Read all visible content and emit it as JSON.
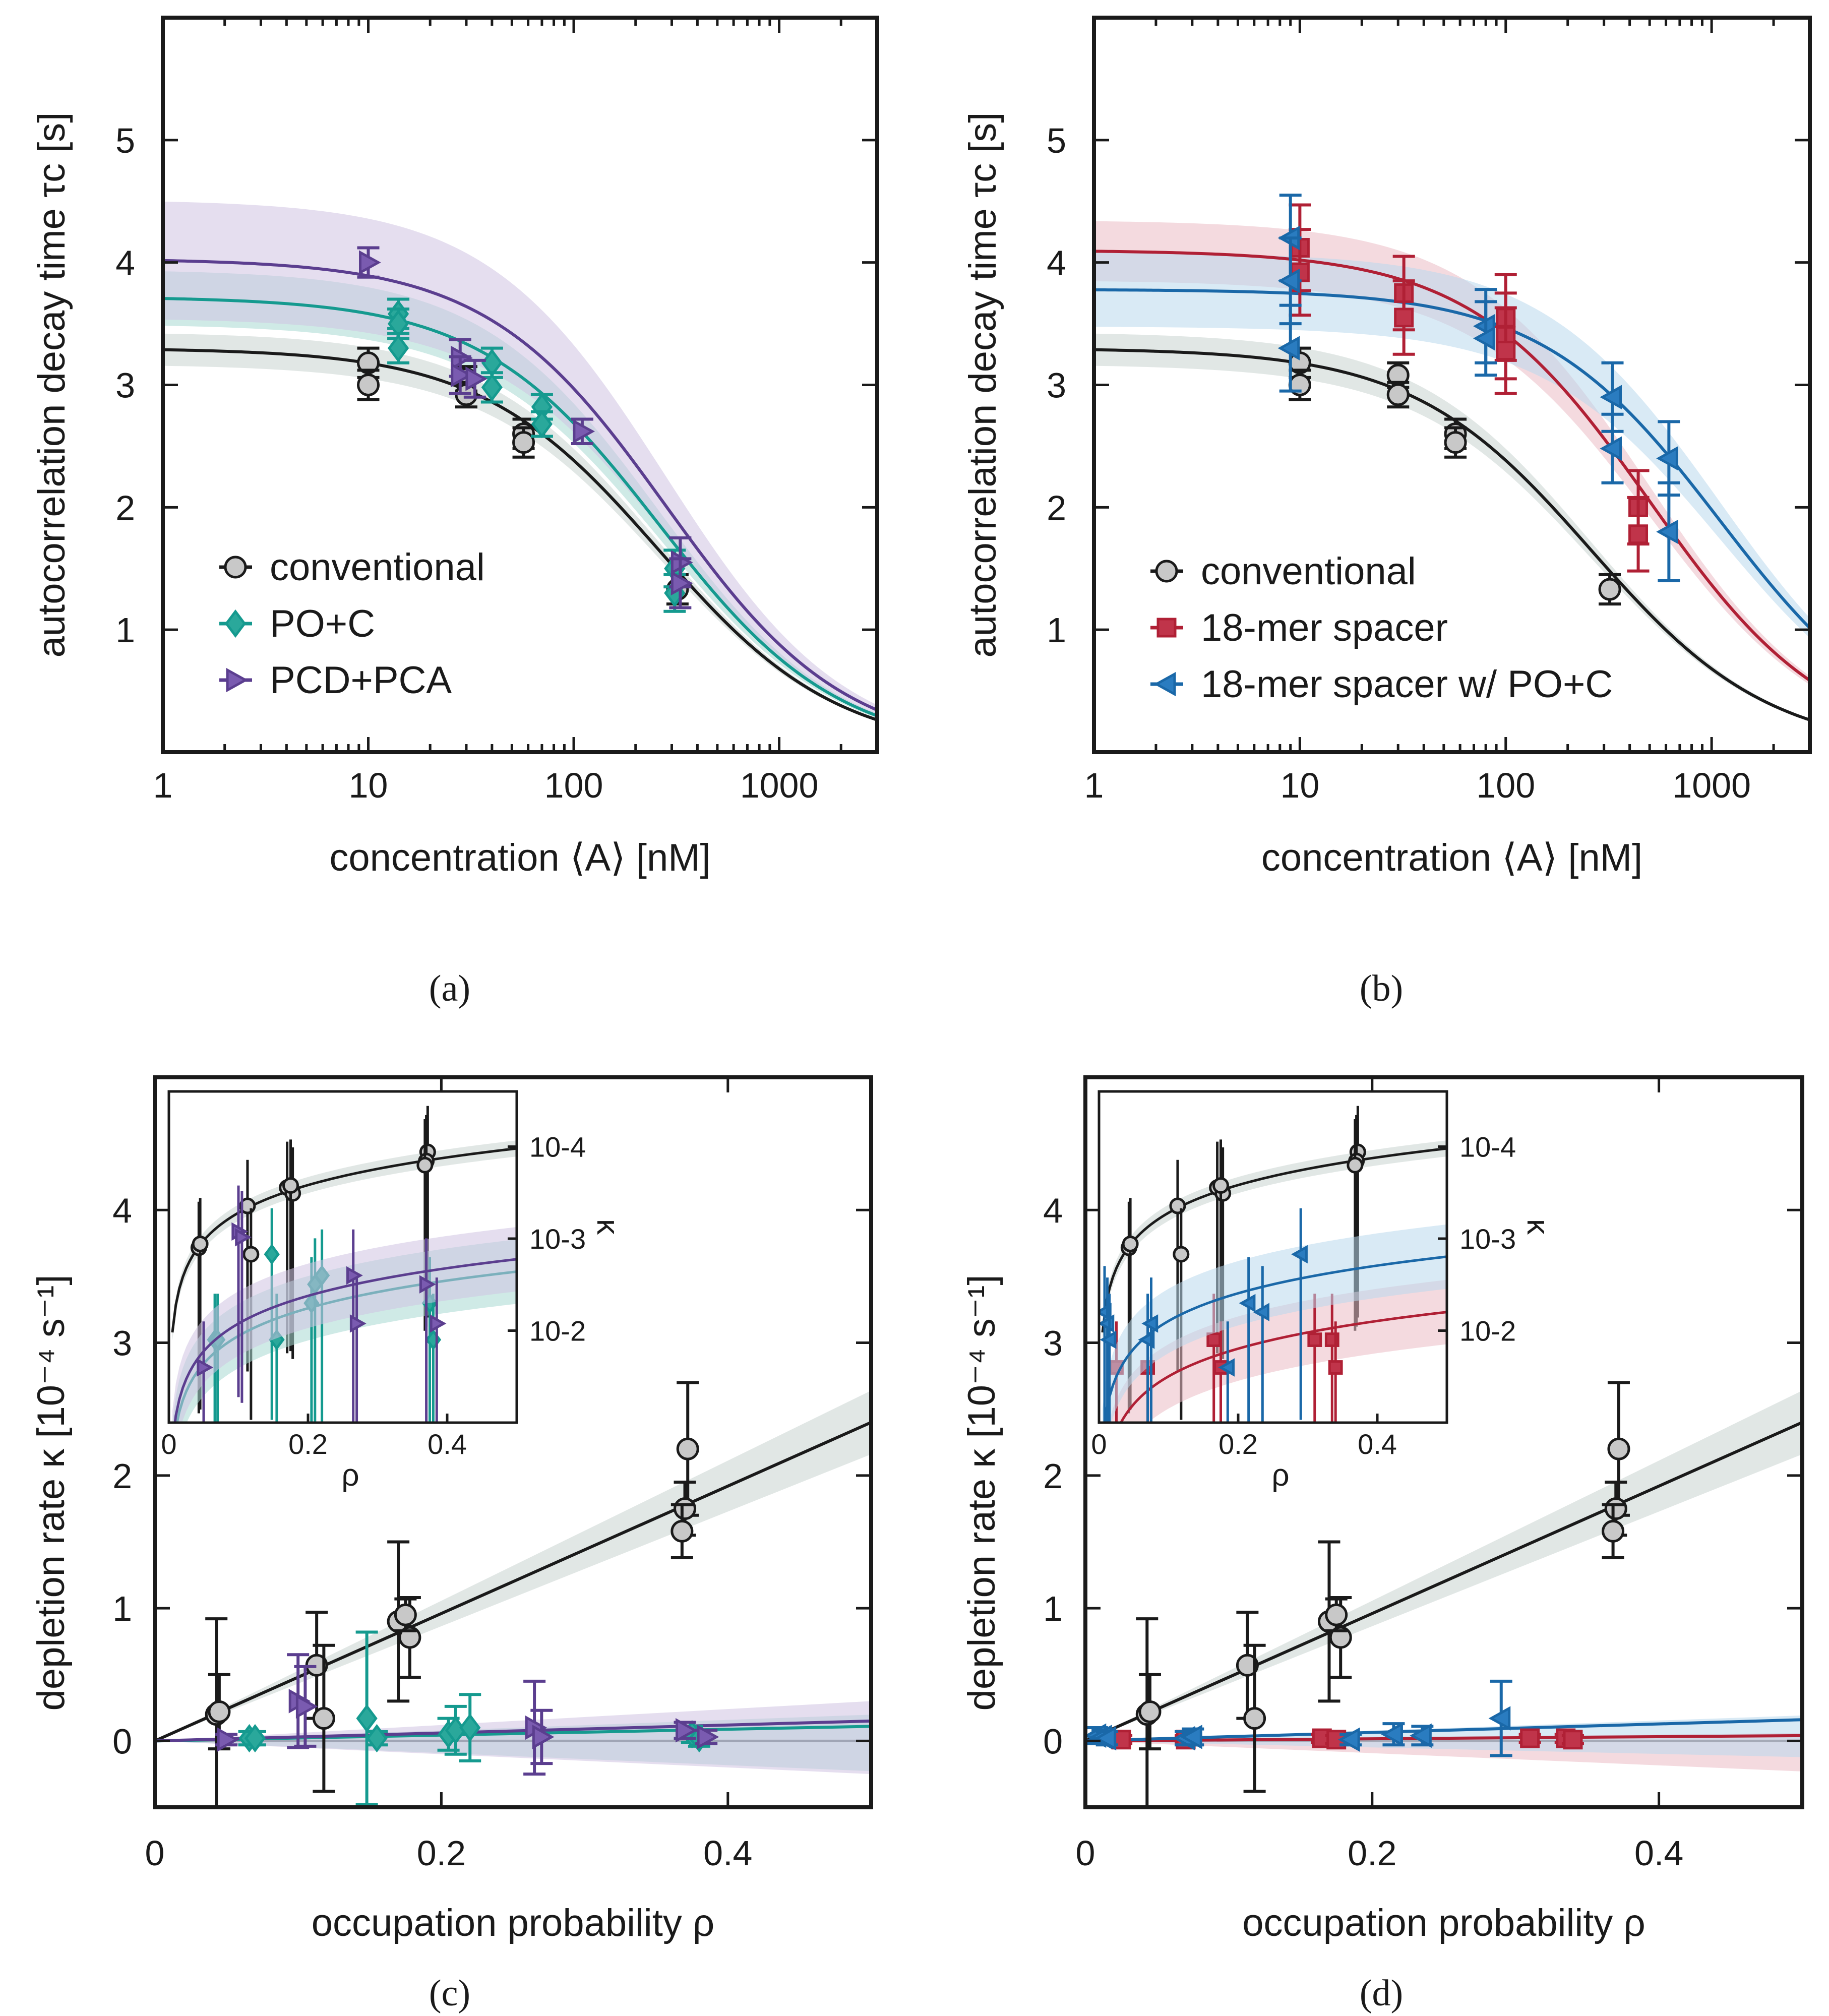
{
  "figure": {
    "captions": [
      "(a)",
      "(b)",
      "(c)",
      "(d)"
    ]
  },
  "chart_data": [
    {
      "id": "a",
      "type": "scatter",
      "caption": "(a)",
      "xscale": "log",
      "xlim": [
        1,
        3000
      ],
      "ylim": [
        0,
        6
      ],
      "xticks": [
        1,
        10,
        100,
        1000
      ],
      "xtick_labels": [
        "1",
        "10",
        "100",
        "1000"
      ],
      "yticks": [
        1,
        2,
        3,
        4,
        5
      ],
      "ytick_labels": [
        "1",
        "2",
        "3",
        "4",
        "5"
      ],
      "xlabel": "concentration ⟨A⟩ [nM]",
      "ylabel": "autocorrelation decay time τc [s]",
      "legend_position": "bottom-left",
      "series": [
        {
          "name": "conventional",
          "color": "#1a1a1a",
          "fill": "#c8c8c8",
          "band": "#c9d3d0",
          "marker": "circle",
          "fit": {
            "tau0": 3.3,
            "K": 260,
            "band_rel": 0.04
          },
          "points": [
            [
              10,
              3.18,
              0.12
            ],
            [
              10,
              3.0,
              0.12
            ],
            [
              30,
              3.05,
              0.1
            ],
            [
              30,
              2.92,
              0.1
            ],
            [
              57,
              2.6,
              0.12
            ],
            [
              57,
              2.53,
              0.12
            ],
            [
              320,
              1.33,
              0.12
            ]
          ]
        },
        {
          "name": "PO+C",
          "color": "#159a8f",
          "fill": "#2aa89b",
          "band": "#a8d8d2",
          "marker": "diamond",
          "fit": {
            "tau0": 3.72,
            "K": 260,
            "band_rel": 0.06
          },
          "points": [
            [
              14,
              3.58,
              0.12
            ],
            [
              14,
              3.5,
              0.12
            ],
            [
              14,
              3.3,
              0.12
            ],
            [
              40,
              3.18,
              0.12
            ],
            [
              40,
              2.98,
              0.12
            ],
            [
              70,
              2.82,
              0.1
            ],
            [
              70,
              2.68,
              0.1
            ],
            [
              310,
              1.5,
              0.15
            ],
            [
              310,
              1.3,
              0.15
            ]
          ]
        },
        {
          "name": "PCD+PCA",
          "color": "#5b3e8f",
          "fill": "#7a5bb0",
          "band": "#cfc2e2",
          "marker": "triangle-right",
          "fit": {
            "tau0": 4.03,
            "K": 280,
            "band_rel": 0.12
          },
          "points": [
            [
              10,
              4.0,
              0.12
            ],
            [
              28,
              3.22,
              0.15
            ],
            [
              28,
              3.08,
              0.15
            ],
            [
              33,
              3.05,
              0.15
            ],
            [
              110,
              2.62,
              0.1
            ],
            [
              330,
              1.55,
              0.2
            ],
            [
              330,
              1.38,
              0.2
            ]
          ]
        }
      ]
    },
    {
      "id": "b",
      "type": "scatter",
      "caption": "(b)",
      "xscale": "log",
      "xlim": [
        1,
        3000
      ],
      "ylim": [
        0,
        6
      ],
      "xticks": [
        1,
        10,
        100,
        1000
      ],
      "xtick_labels": [
        "1",
        "10",
        "100",
        "1000"
      ],
      "yticks": [
        1,
        2,
        3,
        4,
        5
      ],
      "ytick_labels": [
        "1",
        "2",
        "3",
        "4",
        "5"
      ],
      "xlabel": "concentration ⟨A⟩ [nM]",
      "ylabel": "autocorrelation decay time τc [s]",
      "legend_position": "bottom-left",
      "series": [
        {
          "name": "conventional",
          "color": "#1a1a1a",
          "fill": "#c8c8c8",
          "band": "#c9d3d0",
          "marker": "circle",
          "fit": {
            "tau0": 3.3,
            "K": 260,
            "band_rel": 0.04
          },
          "points": [
            [
              10,
              3.18,
              0.12
            ],
            [
              10,
              3.0,
              0.12
            ],
            [
              30,
              3.08,
              0.1
            ],
            [
              30,
              2.92,
              0.1
            ],
            [
              57,
              2.6,
              0.12
            ],
            [
              57,
              2.53,
              0.12
            ],
            [
              320,
              1.33,
              0.12
            ]
          ]
        },
        {
          "name": "18-mer spacer",
          "color": "#b02035",
          "fill": "#c0344a",
          "band": "#ebbcc4",
          "marker": "square",
          "fit": {
            "tau0": 4.1,
            "K": 500,
            "band_rel": 0.06
          },
          "points": [
            [
              10,
              4.12,
              0.35
            ],
            [
              10,
              3.92,
              0.35
            ],
            [
              32,
              3.75,
              0.3
            ],
            [
              32,
              3.55,
              0.3
            ],
            [
              100,
              3.55,
              0.35
            ],
            [
              100,
              3.4,
              0.35
            ],
            [
              100,
              3.28,
              0.35
            ],
            [
              440,
              2.0,
              0.3
            ],
            [
              440,
              1.78,
              0.3
            ]
          ]
        },
        {
          "name": "18-mer spacer w/ PO+C",
          "color": "#1a68a8",
          "fill": "#2a7cc0",
          "band": "#b9d9ec",
          "marker": "triangle-left",
          "fit": {
            "tau0": 3.78,
            "K": 1100,
            "band_rel": 0.08
          },
          "points": [
            [
              9,
              4.2,
              0.35
            ],
            [
              9,
              3.85,
              0.35
            ],
            [
              9,
              3.3,
              0.35
            ],
            [
              80,
              3.48,
              0.3
            ],
            [
              80,
              3.38,
              0.3
            ],
            [
              330,
              2.9,
              0.28
            ],
            [
              330,
              2.48,
              0.28
            ],
            [
              620,
              2.4,
              0.3
            ],
            [
              620,
              1.8,
              0.4
            ]
          ]
        }
      ]
    },
    {
      "id": "c",
      "type": "scatter",
      "caption": "(c)",
      "xlim": [
        0,
        0.5
      ],
      "ylim": [
        -0.5,
        5
      ],
      "xticks": [
        0,
        0.2,
        0.4
      ],
      "xtick_labels": [
        "0",
        "0.2",
        "0.4"
      ],
      "yticks": [
        0,
        1,
        2,
        3,
        4
      ],
      "ytick_labels": [
        "0",
        "1",
        "2",
        "3",
        "4"
      ],
      "xlabel": "occupation probability ρ",
      "ylabel": "depletion rate κ [10⁻⁴ s⁻¹]",
      "series": [
        {
          "name": "conventional",
          "color": "#1a1a1a",
          "fill": "#c8c8c8",
          "band": "#c9d3d0",
          "marker": "circle",
          "fit": {
            "slope": 4.8,
            "band_rel": 0.1
          },
          "points": [
            [
              0.043,
              0.2,
              0.72
            ],
            [
              0.045,
              0.22,
              0.28
            ],
            [
              0.113,
              0.57,
              0.4
            ],
            [
              0.118,
              0.17,
              0.55
            ],
            [
              0.17,
              0.9,
              0.6
            ],
            [
              0.178,
              0.78,
              0.3
            ],
            [
              0.175,
              0.95,
              0.12
            ],
            [
              0.372,
              2.2,
              0.5
            ],
            [
              0.37,
              1.75,
              0.2
            ],
            [
              0.368,
              1.58,
              0.2
            ]
          ]
        },
        {
          "name": "PO+C",
          "color": "#159a8f",
          "fill": "#2aa89b",
          "band": "#a8d8d2",
          "marker": "diamond",
          "fit": {
            "slope": 0.22,
            "band_rel": 0.8
          },
          "points": [
            [
              0.066,
              0.02,
              0.05
            ],
            [
              0.07,
              0.02,
              0.05
            ],
            [
              0.148,
              0.17,
              0.65
            ],
            [
              0.155,
              0.02,
              0.05
            ],
            [
              0.205,
              0.05,
              0.12
            ],
            [
              0.21,
              0.08,
              0.18
            ],
            [
              0.22,
              0.1,
              0.25
            ],
            [
              0.375,
              0.05,
              0.06
            ],
            [
              0.38,
              0.02,
              0.06
            ]
          ]
        },
        {
          "name": "PCD+PCA",
          "color": "#5b3e8f",
          "fill": "#7a5bb0",
          "band": "#cfc2e2",
          "marker": "triangle-right",
          "fit": {
            "slope": 0.3,
            "band_rel": 1.0
          },
          "points": [
            [
              0.05,
              0.01,
              0.04
            ],
            [
              0.1,
              0.3,
              0.35
            ],
            [
              0.105,
              0.26,
              0.3
            ],
            [
              0.265,
              0.1,
              0.35
            ],
            [
              0.27,
              0.03,
              0.2
            ],
            [
              0.37,
              0.08,
              0.06
            ],
            [
              0.385,
              0.03,
              0.05
            ]
          ]
        }
      ],
      "inset": {
        "xlim": [
          0,
          0.5
        ],
        "xticks": [
          0,
          0.2,
          0.4
        ],
        "xtick_labels": [
          "0",
          "0.2",
          "0.4"
        ],
        "xlabel": "ρ",
        "ylabel": "κ",
        "ytick_labels": [
          "10-4",
          "10-3",
          "10-2"
        ],
        "ytick_exponents": [
          -4,
          -3,
          -2
        ]
      }
    },
    {
      "id": "d",
      "type": "scatter",
      "caption": "(d)",
      "xlim": [
        0,
        0.5
      ],
      "ylim": [
        -0.5,
        5
      ],
      "xticks": [
        0,
        0.2,
        0.4
      ],
      "xtick_labels": [
        "0",
        "0.2",
        "0.4"
      ],
      "yticks": [
        0,
        1,
        2,
        3,
        4
      ],
      "ytick_labels": [
        "0",
        "1",
        "2",
        "3",
        "4"
      ],
      "xlabel": "occupation probability ρ",
      "ylabel": "depletion rate κ [10⁻⁴ s⁻¹]",
      "series": [
        {
          "name": "conventional",
          "color": "#1a1a1a",
          "fill": "#c8c8c8",
          "band": "#c9d3d0",
          "marker": "circle",
          "fit": {
            "slope": 4.8,
            "band_rel": 0.1
          },
          "points": [
            [
              0.043,
              0.2,
              0.72
            ],
            [
              0.045,
              0.22,
              0.28
            ],
            [
              0.113,
              0.57,
              0.4
            ],
            [
              0.118,
              0.17,
              0.55
            ],
            [
              0.17,
              0.9,
              0.6
            ],
            [
              0.178,
              0.78,
              0.3
            ],
            [
              0.175,
              0.95,
              0.12
            ],
            [
              0.372,
              2.2,
              0.5
            ],
            [
              0.37,
              1.75,
              0.2
            ],
            [
              0.368,
              1.58,
              0.2
            ]
          ]
        },
        {
          "name": "18-mer spacer",
          "color": "#b02035",
          "fill": "#c0344a",
          "band": "#ebbcc4",
          "marker": "square",
          "fit": {
            "slope": 0.08,
            "band_rel": 0.5
          },
          "points": [
            [
              0.025,
              0.01,
              0.03
            ],
            [
              0.07,
              0.01,
              0.03
            ],
            [
              0.165,
              0.02,
              0.03
            ],
            [
              0.175,
              0.01,
              0.03
            ],
            [
              0.31,
              0.02,
              0.03
            ],
            [
              0.335,
              0.02,
              0.03
            ],
            [
              0.34,
              0.01,
              0.03
            ]
          ]
        },
        {
          "name": "18-mer spacer w/ PO+C",
          "color": "#1a68a8",
          "fill": "#2a7cc0",
          "band": "#b9d9ec",
          "marker": "triangle-left",
          "fit": {
            "slope": 0.32,
            "band_rel": 0.2
          },
          "points": [
            [
              0.008,
              0.04,
              0.06
            ],
            [
              0.012,
              0.03,
              0.05
            ],
            [
              0.015,
              0.02,
              0.05
            ],
            [
              0.07,
              0.02,
              0.05
            ],
            [
              0.075,
              0.03,
              0.06
            ],
            [
              0.185,
              0.01,
              0.04
            ],
            [
              0.215,
              0.05,
              0.08
            ],
            [
              0.235,
              0.04,
              0.07
            ],
            [
              0.29,
              0.17,
              0.28
            ]
          ]
        }
      ],
      "inset": {
        "xlim": [
          0,
          0.5
        ],
        "xticks": [
          0,
          0.2,
          0.4
        ],
        "xtick_labels": [
          "0",
          "0.2",
          "0.4"
        ],
        "xlabel": "ρ",
        "ylabel": "κ",
        "ytick_labels": [
          "10-4",
          "10-3",
          "10-2"
        ],
        "ytick_exponents": [
          -4,
          -3,
          -2
        ]
      }
    }
  ]
}
